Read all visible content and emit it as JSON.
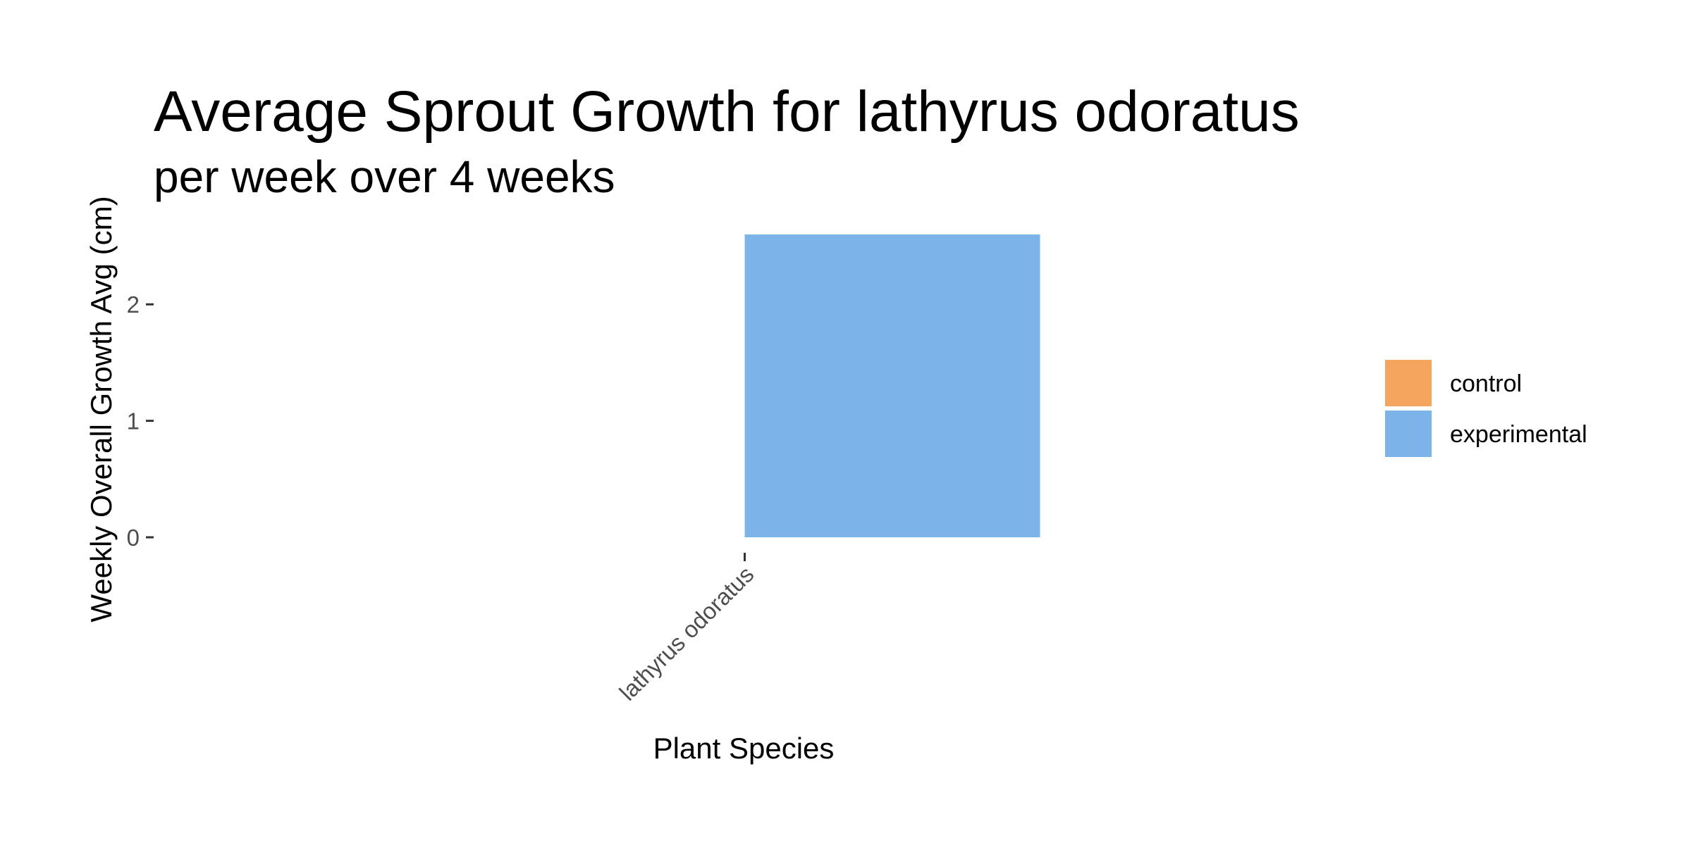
{
  "chart_data": {
    "type": "bar",
    "title": "Average Sprout Growth for lathyrus odoratus",
    "subtitle": "per week over 4 weeks",
    "xlabel": "Plant Species",
    "ylabel": "Weekly Overall Growth Avg (cm)",
    "categories": [
      "lathyrus odoratus"
    ],
    "series": [
      {
        "name": "control",
        "values": [
          null
        ]
      },
      {
        "name": "experimental",
        "values": [
          2.6
        ]
      }
    ],
    "y_ticks": [
      0,
      1,
      2
    ],
    "ylim": [
      0,
      2.6
    ],
    "grid": false,
    "legend_position": "right"
  },
  "colors": {
    "control": "#F6A55E",
    "experimental": "#7CB4EA"
  }
}
